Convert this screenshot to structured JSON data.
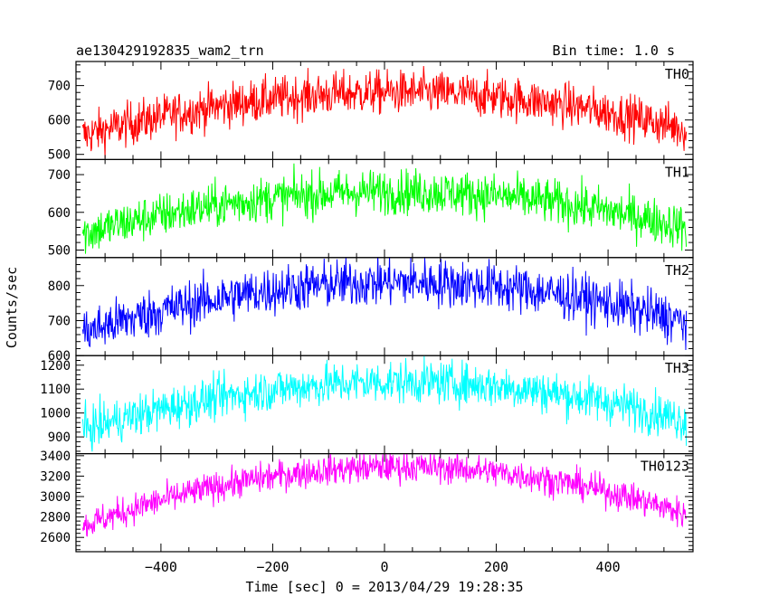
{
  "header": {
    "left_title": "ae130429192835_wam2_trn",
    "right_title": "Bin time: 1.0 s"
  },
  "chart_data": {
    "type": "line",
    "xlabel": "Time [sec] 0 = 2013/04/29 19:28:35",
    "ylabel": "Counts/sec",
    "xlim": [
      -552,
      552
    ],
    "xticks": [
      -400,
      -200,
      0,
      200,
      400
    ],
    "x_range_data": [
      -540,
      540
    ],
    "bin_time_s": 1.0,
    "panels": [
      {
        "name": "TH0",
        "color": "#ff0000",
        "ylim": [
          485,
          770
        ],
        "yticks": [
          500,
          600,
          700
        ],
        "baseline": 545,
        "peak": 680,
        "noise": 32,
        "center": 20
      },
      {
        "name": "TH1",
        "color": "#00ff00",
        "ylim": [
          480,
          740
        ],
        "yticks": [
          500,
          600,
          700
        ],
        "baseline": 535,
        "peak": 655,
        "noise": 30,
        "center": 20
      },
      {
        "name": "TH2",
        "color": "#0000ff",
        "ylim": [
          600,
          880
        ],
        "yticks": [
          600,
          700,
          800
        ],
        "baseline": 660,
        "peak": 810,
        "noise": 35,
        "center": 30
      },
      {
        "name": "TH3",
        "color": "#00ffff",
        "ylim": [
          830,
          1240
        ],
        "yticks": [
          900,
          1000,
          1100,
          1200
        ],
        "baseline": 920,
        "peak": 1130,
        "noise": 45,
        "center": 30
      },
      {
        "name": "TH0123",
        "color": "#ff00ff",
        "ylim": [
          2460,
          3420
        ],
        "yticks": [
          2600,
          2800,
          3000,
          3200,
          3400
        ],
        "baseline": 2690,
        "peak": 3290,
        "noise": 75,
        "center": 30
      }
    ]
  }
}
